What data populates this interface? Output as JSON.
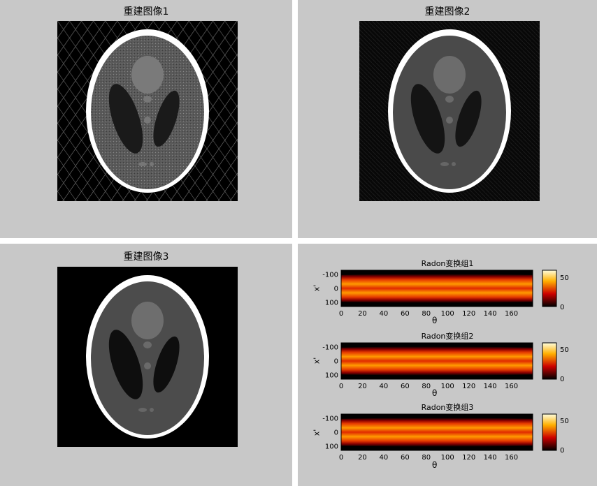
{
  "panels": [
    {
      "title": "重建图像1",
      "quality": "streaky"
    },
    {
      "title": "重建图像2",
      "quality": "noisy"
    },
    {
      "title": "重建图像3",
      "quality": "clean"
    }
  ],
  "radon": [
    {
      "title": "Radon变换组1",
      "ylabel": "x'",
      "xlabel": "θ",
      "colorbar_max": "50",
      "colorbar_min": "0"
    },
    {
      "title": "Radon变换组2",
      "ylabel": "x'",
      "xlabel": "θ",
      "colorbar_max": "50",
      "colorbar_min": "0"
    },
    {
      "title": "Radon变换组3",
      "ylabel": "x'",
      "xlabel": "θ",
      "colorbar_max": "50",
      "colorbar_min": "0"
    }
  ],
  "colors": {
    "figure_bg": "#c8c8c8",
    "divider": "#ffffff"
  },
  "chart_data": {
    "type": "heatmap",
    "xticks": [
      "0",
      "20",
      "40",
      "60",
      "80",
      "100",
      "120",
      "140",
      "160"
    ],
    "yticks": [
      "-100",
      "0",
      "100"
    ],
    "xlim": [
      0,
      180
    ],
    "ylim": [
      -130,
      130
    ],
    "colormap": "hot",
    "clim": [
      0,
      60
    ]
  }
}
